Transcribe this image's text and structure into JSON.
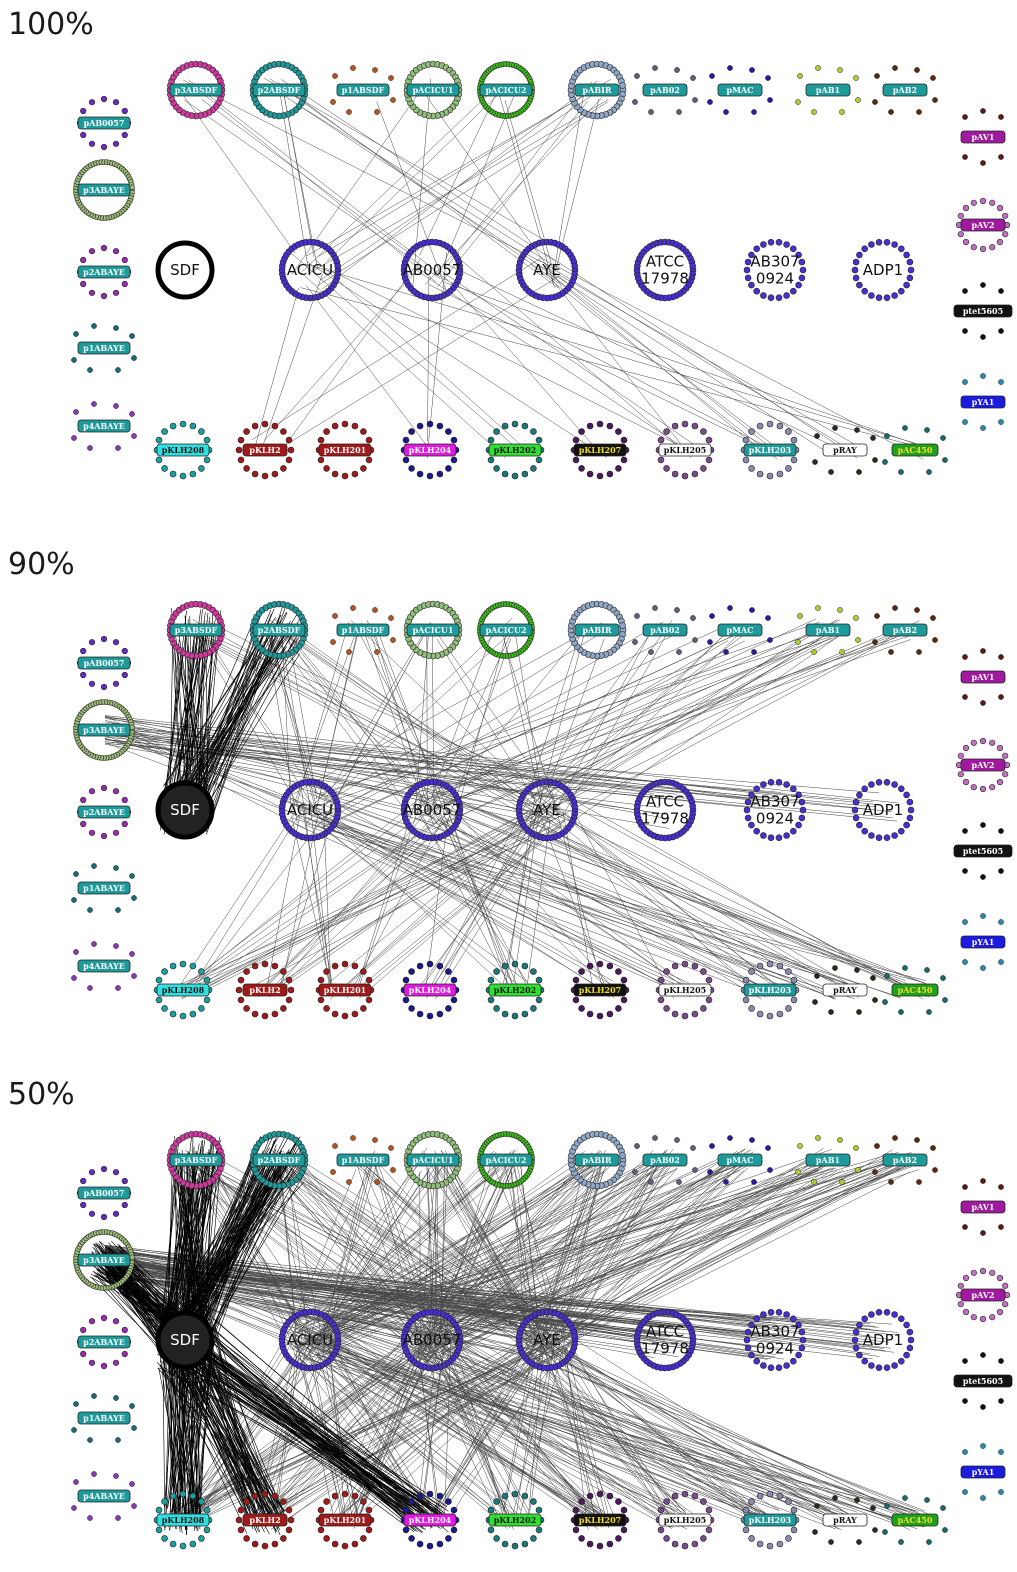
{
  "panels": [
    {
      "label": "100%",
      "density": 0.0
    },
    {
      "label": "90%",
      "density": 1.0
    },
    {
      "label": "50%",
      "density": 3.0
    }
  ],
  "colors": {
    "core": "#4a2fd0",
    "edge": "#1a1a1a",
    "label_teal": "#1e9a9a"
  },
  "top_plasmids": [
    {
      "name": "p3ABSDF",
      "type": "ring",
      "color": "#d03aa0",
      "label_color": "#1e9a9a"
    },
    {
      "name": "p2ABSDF",
      "type": "ring",
      "color": "#1e9a9a",
      "label_color": "#1e9a9a"
    },
    {
      "name": "p1ABSDF",
      "type": "pill",
      "color": "#b5541e",
      "label_color": "#1e9a9a"
    },
    {
      "name": "pACICU1",
      "type": "ring",
      "color": "#8fbf7a",
      "label_color": "#1e9a9a"
    },
    {
      "name": "pACICU2",
      "type": "ring",
      "color": "#3fbf1a",
      "label_color": "#1e9a9a",
      "thick": true
    },
    {
      "name": "pABIR",
      "type": "ring",
      "color": "#8fa8c8",
      "label_color": "#1e9a9a"
    },
    {
      "name": "pAB02",
      "type": "pill",
      "color": "#6a5a7a",
      "label_color": "#1e9a9a"
    },
    {
      "name": "pMAC",
      "type": "pill",
      "color": "#2a1aa0",
      "label_color": "#1e9a9a"
    },
    {
      "name": "pAB1",
      "type": "pill",
      "color": "#a8d030",
      "label_color": "#1e9a9a"
    },
    {
      "name": "pAB2",
      "type": "pill",
      "color": "#5a2a10",
      "label_color": "#1e9a9a"
    }
  ],
  "left_plasmids": [
    {
      "name": "pAB0057",
      "type": "ring",
      "color": "#6a2ac0"
    },
    {
      "name": "p3ABAYE",
      "type": "ring",
      "color": "#9fbf7a",
      "thick": true
    },
    {
      "name": "p2ABAYE",
      "type": "ring",
      "color": "#9a2ab0"
    },
    {
      "name": "p1ABAYE",
      "type": "pill",
      "color": "#1a6a7a"
    },
    {
      "name": "p4ABAYE",
      "type": "pill",
      "color": "#8a3ab0"
    }
  ],
  "right_plasmids": [
    {
      "name": "pAV1",
      "type": "pill",
      "color": "#5a1a1a",
      "label_color": "#a01aa0"
    },
    {
      "name": "pAV2",
      "type": "ring",
      "color": "#c070c0",
      "label_color": "#a01aa0"
    },
    {
      "name": "ptet5605",
      "type": "pill",
      "color": "#111111",
      "label_color": "#111111"
    },
    {
      "name": "pYA1",
      "type": "pill",
      "color": "#2a8ab0",
      "label_color": "#1a1ae0"
    }
  ],
  "core_genomes": [
    {
      "name": "SDF",
      "lines": [
        "SDF"
      ]
    },
    {
      "name": "ACICU",
      "lines": [
        "ACICU"
      ]
    },
    {
      "name": "AB0057",
      "lines": [
        "AB0057"
      ]
    },
    {
      "name": "AYE",
      "lines": [
        "AYE"
      ]
    },
    {
      "name": "ATCC 17978",
      "lines": [
        "ATCC",
        "17978"
      ]
    },
    {
      "name": "AB307 0924",
      "lines": [
        "AB307",
        "0924"
      ]
    },
    {
      "name": "ADP1",
      "lines": [
        "ADP1"
      ]
    }
  ],
  "bottom_plasmids": [
    {
      "name": "pKLH208",
      "type": "ring",
      "color": "#1aa0a0",
      "label_color": "#30e0e0",
      "dark_text": true
    },
    {
      "name": "pKLH2",
      "type": "ring",
      "color": "#a01a1a",
      "label_color": "#a01a1a"
    },
    {
      "name": "pKLH201",
      "type": "ring",
      "color": "#a01a1a",
      "label_color": "#a01a1a"
    },
    {
      "name": "pKLH204",
      "type": "ring",
      "color": "#1a1a8a",
      "label_color": "#e01ae0"
    },
    {
      "name": "pKLH202",
      "type": "ring",
      "color": "#1a7a7a",
      "label_color": "#30e030",
      "dark_text": true
    },
    {
      "name": "pKLH207",
      "type": "ring",
      "color": "#4a1a5a",
      "label_color": "#111111",
      "yellow_text": true
    },
    {
      "name": "pKLH205",
      "type": "ring",
      "color": "#7a4a8a",
      "label_color": "#ffffff",
      "dark_text": true
    },
    {
      "name": "pKLH203",
      "type": "ring",
      "color": "#8a8ab0",
      "label_color": "#1e9a9a"
    },
    {
      "name": "pRAY",
      "type": "pill",
      "color": "#2a2a1a",
      "label_color": "#ffffff",
      "dark_text": true
    },
    {
      "name": "pAC450",
      "type": "pill",
      "color": "#1a6a6a",
      "label_color": "#20a020",
      "yellow_text": true
    }
  ]
}
